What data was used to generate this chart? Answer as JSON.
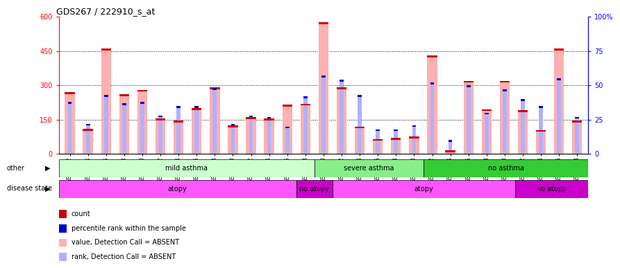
{
  "title": "GDS267 / 222910_s_at",
  "samples": [
    "GSM3922",
    "GSM3924",
    "GSM3926",
    "GSM3928",
    "GSM3930",
    "GSM3932",
    "GSM3934",
    "GSM3936",
    "GSM3938",
    "GSM3940",
    "GSM3942",
    "GSM3944",
    "GSM3946",
    "GSM3948",
    "GSM3950",
    "GSM3952",
    "GSM3954",
    "GSM3956",
    "GSM3958",
    "GSM3960",
    "GSM3962",
    "GSM3964",
    "GSM3966",
    "GSM3968",
    "GSM3970",
    "GSM3972",
    "GSM3974",
    "GSM3976",
    "GSM3978"
  ],
  "count_values": [
    270,
    110,
    460,
    260,
    280,
    155,
    145,
    200,
    290,
    125,
    160,
    155,
    215,
    220,
    575,
    290,
    120,
    65,
    70,
    75,
    430,
    15,
    320,
    195,
    320,
    190,
    105,
    460,
    145
  ],
  "rank_values": [
    38,
    22,
    43,
    37,
    38,
    28,
    35,
    35,
    48,
    22,
    28,
    27,
    20,
    42,
    57,
    54,
    43,
    18,
    18,
    21,
    52,
    10,
    50,
    30,
    47,
    40,
    35,
    55,
    27
  ],
  "ylim_left": [
    0,
    600
  ],
  "ylim_right": [
    0,
    100
  ],
  "yticks_left": [
    0,
    150,
    300,
    450,
    600
  ],
  "yticks_right": [
    0,
    25,
    50,
    75,
    100
  ],
  "ytick_labels_left": [
    "0",
    "150",
    "300",
    "450",
    "600"
  ],
  "ytick_labels_right": [
    "0",
    "25",
    "50",
    "75",
    "100%"
  ],
  "color_count_absent": "#ffb0b0",
  "color_rank_absent": "#b0b0ff",
  "color_count_marker": "#cc0000",
  "color_rank_marker": "#0000cc",
  "other_groups": [
    {
      "label": "mild asthma",
      "start": 0,
      "end": 14,
      "color": "#ccffcc"
    },
    {
      "label": "severe asthma",
      "start": 14,
      "end": 20,
      "color": "#88ee88"
    },
    {
      "label": "no asthma",
      "start": 20,
      "end": 29,
      "color": "#33cc33"
    }
  ],
  "disease_groups": [
    {
      "label": "atopy",
      "start": 0,
      "end": 13,
      "color": "#ff55ff"
    },
    {
      "label": "no atopy",
      "start": 13,
      "end": 15,
      "color": "#cc00cc"
    },
    {
      "label": "atopy",
      "start": 15,
      "end": 25,
      "color": "#ff55ff"
    },
    {
      "label": "no atopy",
      "start": 25,
      "end": 29,
      "color": "#cc00cc"
    }
  ],
  "other_label": "other",
  "disease_label": "disease state",
  "legend_items": [
    {
      "color": "#cc0000",
      "label": "count",
      "marker": true
    },
    {
      "color": "#0000cc",
      "label": "percentile rank within the sample",
      "marker": true
    },
    {
      "color": "#ffb0b0",
      "label": "value, Detection Call = ABSENT",
      "marker": false
    },
    {
      "color": "#b0b0ff",
      "label": "rank, Detection Call = ABSENT",
      "marker": false
    }
  ]
}
